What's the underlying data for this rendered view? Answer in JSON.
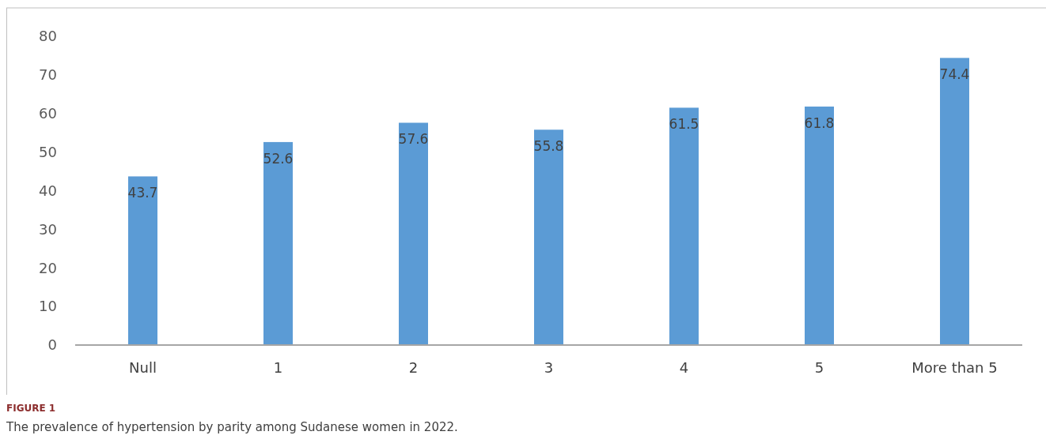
{
  "chart_data": {
    "type": "bar",
    "categories": [
      "Null",
      "1",
      "2",
      "3",
      "4",
      "5",
      "More than 5"
    ],
    "values": [
      43.7,
      52.6,
      57.6,
      55.8,
      61.5,
      61.8,
      74.4
    ],
    "color": "#5b9bd5",
    "ylim": [
      0,
      80
    ],
    "yticks": [
      0,
      10,
      20,
      30,
      40,
      50,
      60,
      70,
      80
    ],
    "grid": false,
    "data_labels": true,
    "annotations": [
      "FIGURE 1",
      "The prevalence of hypertension by parity among Sudanese women in 2022."
    ]
  }
}
